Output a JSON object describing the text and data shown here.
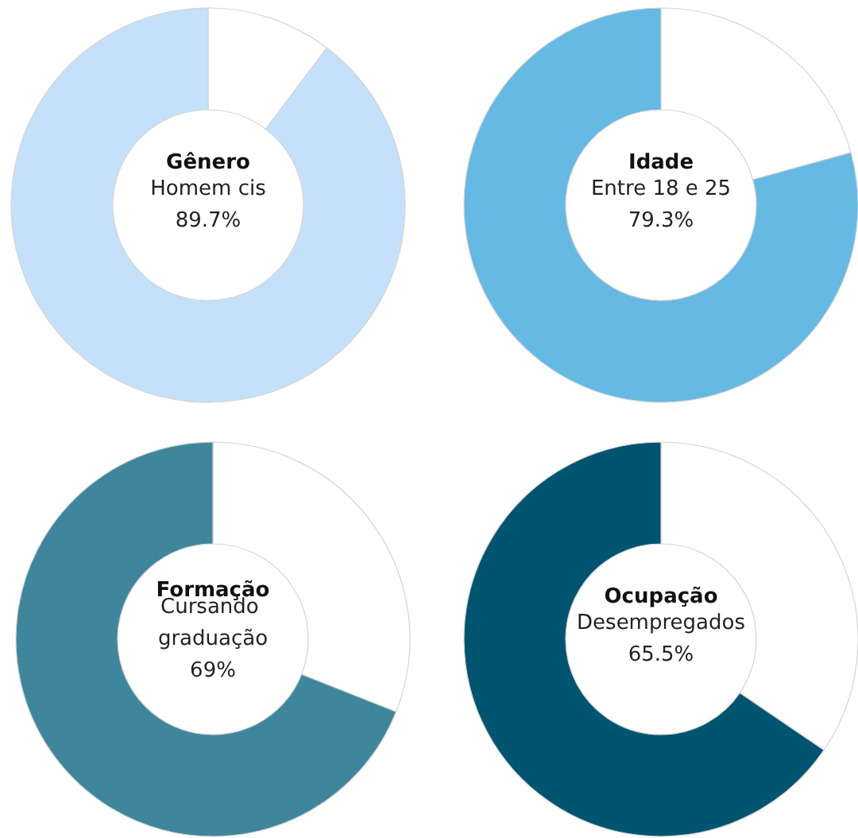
{
  "chart_data": [
    {
      "type": "donut",
      "title": "Gênero",
      "categories": [
        null,
        "Homem cis"
      ],
      "values": [
        10.3,
        89.7
      ],
      "colors": [
        "#ffffff",
        "#c5e0fb"
      ],
      "value_labels": [
        null,
        "89.7%"
      ]
    },
    {
      "type": "donut",
      "title": "Idade",
      "categories": [
        null,
        "Entre 18 e 25"
      ],
      "values": [
        20.7,
        79.3
      ],
      "colors": [
        "#ffffff",
        "#66b9e3"
      ],
      "value_labels": [
        null,
        "79.3%"
      ]
    },
    {
      "type": "donut",
      "title": "Formação",
      "categories": [
        null,
        "Cursando graduação"
      ],
      "values": [
        31,
        69
      ],
      "colors": [
        "#ffffff",
        "#3f869d"
      ],
      "value_labels": [
        null,
        "69%"
      ]
    },
    {
      "type": "donut",
      "title": "Ocupação",
      "categories": [
        null,
        "Desempregados"
      ],
      "values": [
        34.5,
        65.5
      ],
      "colors": [
        "#ffffff",
        "#00546f"
      ],
      "value_labels": [
        null,
        "65.5%"
      ]
    }
  ]
}
